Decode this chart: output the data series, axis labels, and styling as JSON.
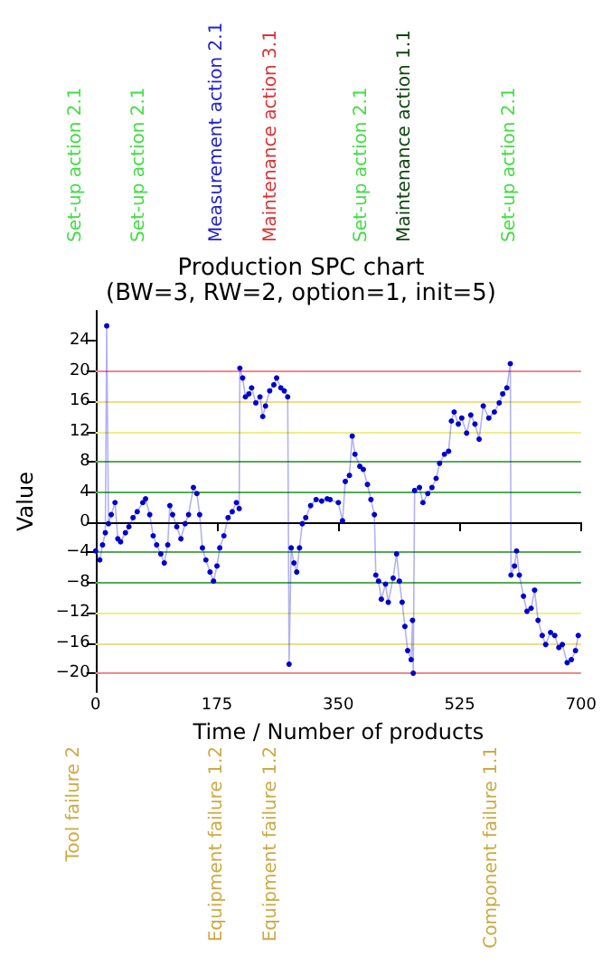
{
  "chart_data": {
    "type": "line",
    "title": "Production SPC chart",
    "subtitle": "(BW=3, RW=2, option=1, init=5)",
    "xlabel": "Time / Number of products",
    "ylabel": "Value",
    "xlim": [
      0,
      700
    ],
    "xticks": [
      0,
      175,
      350,
      525,
      700
    ],
    "ylim": [
      -22.5,
      28
    ],
    "yticks": [
      -20,
      -16,
      -12,
      -8,
      -4,
      0,
      4,
      8,
      12,
      16,
      20,
      24
    ],
    "marker": "circle",
    "line_style": "solid",
    "grid": false,
    "series": [
      {
        "color": "#0000cc",
        "x": [
          0,
          6,
          10,
          14,
          16,
          18.5,
          22.5,
          28,
          32,
          36,
          43,
          48,
          54,
          60,
          68,
          72,
          78,
          83,
          88,
          94,
          99,
          104,
          107,
          111,
          117,
          123,
          129,
          134,
          141,
          146,
          150,
          154,
          159,
          165,
          170,
          175,
          179,
          185,
          191,
          197,
          203,
          207,
          208,
          212,
          216,
          221,
          225,
          231,
          237,
          241,
          245,
          251,
          257,
          261,
          267,
          272,
          277,
          279,
          282,
          286,
          290,
          294,
          298,
          303,
          310,
          318,
          326,
          334,
          338,
          350,
          356,
          360,
          366,
          370,
          374,
          381,
          386,
          392,
          397,
          402,
          404,
          408,
          412,
          418,
          422,
          429,
          434,
          438,
          442,
          446,
          450,
          455,
          457,
          458,
          460,
          467,
          472,
          479,
          485,
          491,
          496,
          503,
          509,
          513,
          517,
          523,
          528,
          535,
          541,
          547,
          553,
          559,
          567,
          575,
          582,
          587,
          593,
          598,
          599,
          604,
          607,
          611,
          617,
          622,
          628,
          633,
          638,
          644,
          649,
          656,
          662,
          668,
          673,
          680,
          686,
          692,
          696
        ],
        "values": [
          -3.8,
          -5,
          -3,
          -1.4,
          26,
          -0.2,
          1,
          2.6,
          -2.2,
          -2.6,
          -1.4,
          -0.6,
          0.6,
          1.4,
          2.6,
          3.1,
          1,
          -1.8,
          -3,
          -4.2,
          -5.4,
          -3,
          2.2,
          1,
          -0.6,
          -2.2,
          -0.2,
          1,
          4.6,
          3.8,
          1,
          -3.4,
          -5,
          -6.6,
          -7.8,
          -5.8,
          -3.4,
          -1.8,
          0.6,
          1.4,
          2.6,
          1.8,
          20.4,
          19.1,
          16.6,
          17,
          17.8,
          15.8,
          16.6,
          14,
          15.4,
          17.4,
          18.2,
          19.1,
          17.8,
          17.4,
          16.6,
          -18.8,
          -3.4,
          -5.4,
          -6.6,
          -3.4,
          -0.2,
          0.6,
          2.2,
          3,
          2.8,
          3.1,
          3,
          2.6,
          0.2,
          5.4,
          6.2,
          11.4,
          9,
          7.4,
          7,
          5,
          3,
          1,
          -7,
          -7.8,
          -10.2,
          -8.2,
          -10.6,
          -7.4,
          -4.2,
          -7.8,
          -10.6,
          -13.8,
          -17,
          -18.2,
          -13,
          -20,
          4.2,
          4.6,
          2.6,
          3.8,
          4.6,
          5.8,
          7.8,
          9,
          9.4,
          13.4,
          14.6,
          13,
          13.8,
          11.8,
          14.2,
          13,
          11,
          15.4,
          13.8,
          14.6,
          15.8,
          17,
          17.8,
          21,
          -7,
          -5.8,
          -3.8,
          -7,
          -9.8,
          -11.8,
          -11.4,
          -9,
          -13,
          -15,
          -16.2,
          -14.6,
          -15,
          -16.6,
          -16.2,
          -18.6,
          -18.2,
          -17,
          -15
        ]
      }
    ],
    "ref_lines": [
      {
        "axis": "y",
        "value": 20,
        "color": "#ee8888"
      },
      {
        "axis": "y",
        "value": 16,
        "color": "#eedd88"
      },
      {
        "axis": "y",
        "value": 12,
        "color": "#eeee88"
      },
      {
        "axis": "y",
        "value": 8,
        "color": "#55aa55"
      },
      {
        "axis": "y",
        "value": 4,
        "color": "#55aa55"
      },
      {
        "axis": "y",
        "value": -4,
        "color": "#55aa55"
      },
      {
        "axis": "y",
        "value": -8,
        "color": "#55aa55"
      },
      {
        "axis": "y",
        "value": -12,
        "color": "#eeee88"
      },
      {
        "axis": "y",
        "value": -16,
        "color": "#eedd88"
      },
      {
        "axis": "y",
        "value": -20,
        "color": "#ee8888"
      }
    ],
    "annotations": [
      "Set-up action 2.1",
      "Set-up action 2.1",
      "Measurement action 2.1",
      "Maintenance action 3.1",
      "Set-up action 2.1",
      "Maintenance action 1.1",
      "Set-up action 2.1",
      "Tool failure 2",
      "Equipment failure 1.2",
      "Equipment failure 1.2",
      "Component failure 1.1"
    ]
  }
}
